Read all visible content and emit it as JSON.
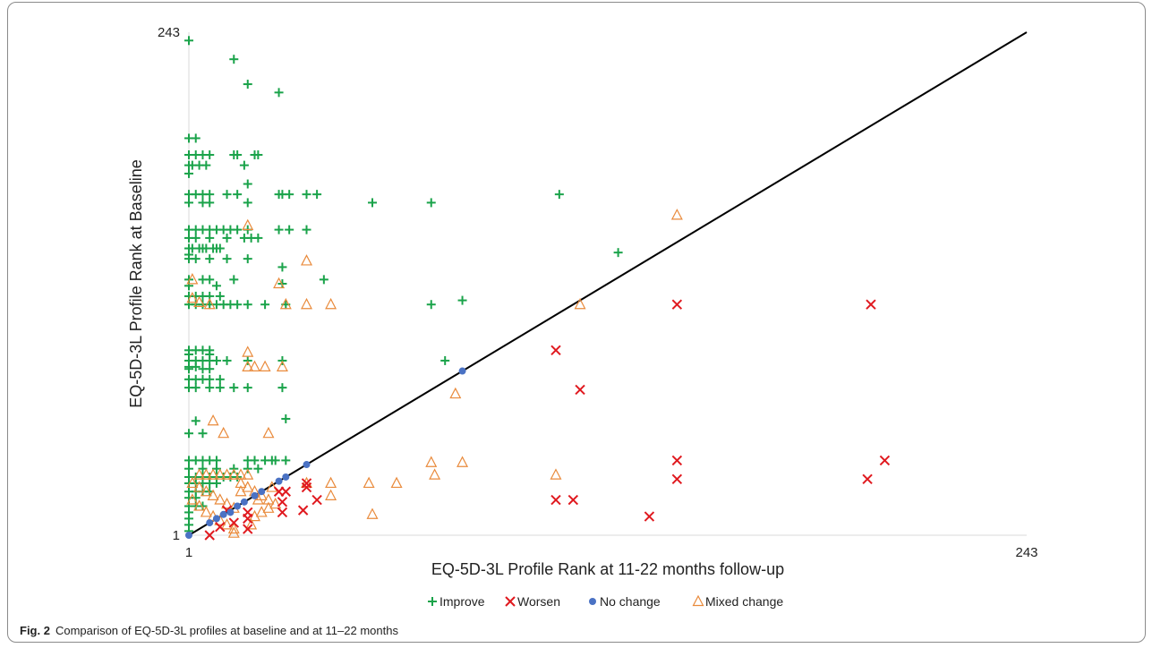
{
  "figure": {
    "label": "Fig. 2",
    "caption": "Comparison of EQ-5D-3L profiles at baseline and at 11–22 months"
  },
  "chart_data": {
    "type": "scatter",
    "xlabel": "EQ-5D-3L Profile Rank at 11-22 months follow-up",
    "ylabel": "EQ-5D-3L Profile Rank at Baseline",
    "xlim": [
      1,
      243
    ],
    "ylim": [
      1,
      243
    ],
    "xticks": [
      "1",
      "243"
    ],
    "yticks": [
      "1",
      "243"
    ],
    "legend_position": "bottom",
    "reference_line": {
      "from": [
        1,
        1
      ],
      "to": [
        243,
        243
      ]
    },
    "series": [
      {
        "name": "Improve",
        "marker": "plus",
        "color": "#1aa34a",
        "points": [
          [
            1,
            239
          ],
          [
            18,
            218
          ],
          [
            27,
            214
          ],
          [
            1,
            192
          ],
          [
            3,
            192
          ],
          [
            1,
            184
          ],
          [
            3,
            184
          ],
          [
            5,
            184
          ],
          [
            7,
            184
          ],
          [
            14,
            184
          ],
          [
            15,
            184
          ],
          [
            20,
            184
          ],
          [
            21,
            184
          ],
          [
            1,
            175
          ],
          [
            1,
            165
          ],
          [
            3,
            165
          ],
          [
            5,
            165
          ],
          [
            7,
            165
          ],
          [
            12,
            165
          ],
          [
            15,
            165
          ],
          [
            27,
            165
          ],
          [
            28,
            165
          ],
          [
            30,
            165
          ],
          [
            35,
            165
          ],
          [
            38,
            165
          ],
          [
            54,
            161
          ],
          [
            71,
            161
          ],
          [
            108,
            165
          ],
          [
            1,
            161
          ],
          [
            5,
            161
          ],
          [
            7,
            161
          ],
          [
            18,
            161
          ],
          [
            1,
            148
          ],
          [
            3,
            148
          ],
          [
            5,
            148
          ],
          [
            7,
            148
          ],
          [
            9,
            148
          ],
          [
            11,
            148
          ],
          [
            13,
            148
          ],
          [
            15,
            148
          ],
          [
            18,
            148
          ],
          [
            27,
            148
          ],
          [
            30,
            148
          ],
          [
            35,
            148
          ],
          [
            1,
            144
          ],
          [
            3,
            144
          ],
          [
            7,
            144
          ],
          [
            12,
            144
          ],
          [
            17,
            144
          ],
          [
            19,
            144
          ],
          [
            21,
            144
          ],
          [
            125,
            137
          ],
          [
            1,
            134
          ],
          [
            3,
            134
          ],
          [
            7,
            134
          ],
          [
            12,
            134
          ],
          [
            18,
            134
          ],
          [
            40,
            124
          ],
          [
            1,
            124
          ],
          [
            5,
            124
          ],
          [
            7,
            124
          ],
          [
            14,
            124
          ],
          [
            28,
            130
          ],
          [
            1,
            112
          ],
          [
            3,
            112
          ],
          [
            5,
            112
          ],
          [
            7,
            112
          ],
          [
            9,
            112
          ],
          [
            11,
            112
          ],
          [
            13,
            112
          ],
          [
            15,
            112
          ],
          [
            18,
            112
          ],
          [
            23,
            112
          ],
          [
            29,
            112
          ],
          [
            71,
            112
          ],
          [
            80,
            114
          ],
          [
            1,
            121
          ],
          [
            9,
            121
          ],
          [
            1,
            85
          ],
          [
            3,
            85
          ],
          [
            5,
            85
          ],
          [
            7,
            85
          ],
          [
            9,
            85
          ],
          [
            12,
            85
          ],
          [
            18,
            85
          ],
          [
            28,
            85
          ],
          [
            1,
            81
          ],
          [
            5,
            81
          ],
          [
            7,
            81
          ],
          [
            1,
            76
          ],
          [
            3,
            76
          ],
          [
            5,
            76
          ],
          [
            7,
            76
          ],
          [
            10,
            76
          ],
          [
            1,
            72
          ],
          [
            3,
            72
          ],
          [
            7,
            72
          ],
          [
            10,
            72
          ],
          [
            14,
            72
          ],
          [
            18,
            72
          ],
          [
            28,
            72
          ],
          [
            75,
            85
          ],
          [
            3,
            56
          ],
          [
            1,
            50
          ],
          [
            5,
            50
          ],
          [
            1,
            37
          ],
          [
            3,
            37
          ],
          [
            5,
            37
          ],
          [
            7,
            37
          ],
          [
            9,
            37
          ],
          [
            18,
            37
          ],
          [
            20,
            37
          ],
          [
            23,
            37
          ],
          [
            25,
            37
          ],
          [
            26,
            37
          ],
          [
            29,
            37
          ],
          [
            1,
            33
          ],
          [
            5,
            33
          ],
          [
            9,
            33
          ],
          [
            14,
            33
          ],
          [
            18,
            33
          ],
          [
            21,
            33
          ],
          [
            1,
            29
          ],
          [
            3,
            29
          ],
          [
            5,
            29
          ],
          [
            7,
            29
          ],
          [
            9,
            29
          ],
          [
            11,
            29
          ],
          [
            13,
            29
          ],
          [
            15,
            29
          ],
          [
            1,
            26
          ],
          [
            3,
            26
          ],
          [
            5,
            26
          ],
          [
            7,
            26
          ],
          [
            9,
            26
          ],
          [
            1,
            22
          ],
          [
            3,
            22
          ],
          [
            5,
            22
          ],
          [
            7,
            22
          ],
          [
            1,
            19
          ],
          [
            3,
            19
          ],
          [
            1,
            15
          ],
          [
            3,
            15
          ],
          [
            5,
            15
          ],
          [
            1,
            12
          ],
          [
            1,
            9
          ],
          [
            1,
            6
          ],
          [
            1,
            3
          ],
          [
            29,
            57
          ],
          [
            1,
            184
          ],
          [
            14,
            230
          ],
          [
            28,
            122
          ],
          [
            1,
            179
          ],
          [
            2,
            179
          ],
          [
            4,
            179
          ],
          [
            6,
            179
          ],
          [
            17,
            179
          ],
          [
            18,
            170
          ],
          [
            1,
            139
          ],
          [
            2,
            139
          ],
          [
            4,
            139
          ],
          [
            5,
            139
          ],
          [
            6,
            139
          ],
          [
            8,
            139
          ],
          [
            9,
            139
          ],
          [
            10,
            139
          ],
          [
            1,
            136
          ],
          [
            1,
            116
          ],
          [
            3,
            116
          ],
          [
            5,
            116
          ],
          [
            7,
            116
          ],
          [
            10,
            116
          ],
          [
            1,
            90
          ],
          [
            3,
            90
          ],
          [
            5,
            90
          ],
          [
            7,
            90
          ],
          [
            1,
            88
          ],
          [
            7,
            88
          ],
          [
            1,
            82
          ],
          [
            3,
            82
          ]
        ]
      },
      {
        "name": "Worsen",
        "marker": "x",
        "color": "#e0191f",
        "points": [
          [
            7,
            1
          ],
          [
            18,
            4
          ],
          [
            10,
            5
          ],
          [
            14,
            7
          ],
          [
            18,
            9
          ],
          [
            12,
            13
          ],
          [
            18,
            12
          ],
          [
            28,
            12
          ],
          [
            38,
            18
          ],
          [
            28,
            17
          ],
          [
            29,
            22
          ],
          [
            35,
            24
          ],
          [
            35,
            26
          ],
          [
            27,
            22
          ],
          [
            34,
            13
          ],
          [
            107,
            90
          ],
          [
            114,
            71
          ],
          [
            107,
            18
          ],
          [
            112,
            18
          ],
          [
            134,
            10
          ],
          [
            142,
            28
          ],
          [
            142,
            37
          ],
          [
            197,
            28
          ],
          [
            202,
            37
          ],
          [
            142,
            112
          ],
          [
            198,
            112
          ]
        ]
      },
      {
        "name": "No change",
        "marker": "dot",
        "color": "#4a72c4",
        "points": [
          [
            1,
            1
          ],
          [
            7,
            7
          ],
          [
            9,
            9
          ],
          [
            11,
            11
          ],
          [
            13,
            12
          ],
          [
            15,
            15
          ],
          [
            17,
            17
          ],
          [
            20,
            20
          ],
          [
            22,
            22
          ],
          [
            27,
            27
          ],
          [
            29,
            29
          ],
          [
            35,
            35
          ],
          [
            80,
            80
          ]
        ]
      },
      {
        "name": "Mixed change",
        "marker": "triangle",
        "color": "#e98a3b",
        "points": [
          [
            18,
            150
          ],
          [
            142,
            155
          ],
          [
            35,
            133
          ],
          [
            27,
            122
          ],
          [
            2,
            124
          ],
          [
            29,
            112
          ],
          [
            35,
            112
          ],
          [
            42,
            112
          ],
          [
            2,
            115
          ],
          [
            4,
            113
          ],
          [
            7,
            112
          ],
          [
            18,
            89
          ],
          [
            18,
            82
          ],
          [
            20,
            82
          ],
          [
            23,
            82
          ],
          [
            28,
            82
          ],
          [
            114,
            112
          ],
          [
            78,
            69
          ],
          [
            8,
            56
          ],
          [
            24,
            50
          ],
          [
            11,
            50
          ],
          [
            71,
            36
          ],
          [
            80,
            36
          ],
          [
            72,
            30
          ],
          [
            53,
            26
          ],
          [
            61,
            26
          ],
          [
            35,
            26
          ],
          [
            42,
            26
          ],
          [
            42,
            20
          ],
          [
            54,
            11
          ],
          [
            107,
            30
          ],
          [
            4,
            30
          ],
          [
            6,
            30
          ],
          [
            8,
            30
          ],
          [
            10,
            30
          ],
          [
            12,
            30
          ],
          [
            14,
            30
          ],
          [
            16,
            30
          ],
          [
            18,
            30
          ],
          [
            2,
            26
          ],
          [
            4,
            24
          ],
          [
            6,
            22
          ],
          [
            8,
            20
          ],
          [
            10,
            18
          ],
          [
            12,
            16
          ],
          [
            14,
            14
          ],
          [
            16,
            22
          ],
          [
            18,
            24
          ],
          [
            20,
            22
          ],
          [
            22,
            20
          ],
          [
            24,
            18
          ],
          [
            26,
            16
          ],
          [
            2,
            18
          ],
          [
            4,
            15
          ],
          [
            6,
            12
          ],
          [
            8,
            10
          ],
          [
            10,
            8
          ],
          [
            12,
            6
          ],
          [
            14,
            4
          ],
          [
            20,
            10
          ],
          [
            22,
            12
          ],
          [
            24,
            14
          ],
          [
            14,
            2
          ],
          [
            19,
            6
          ],
          [
            21,
            18
          ],
          [
            16,
            26
          ],
          [
            25,
            24
          ]
        ]
      }
    ]
  }
}
